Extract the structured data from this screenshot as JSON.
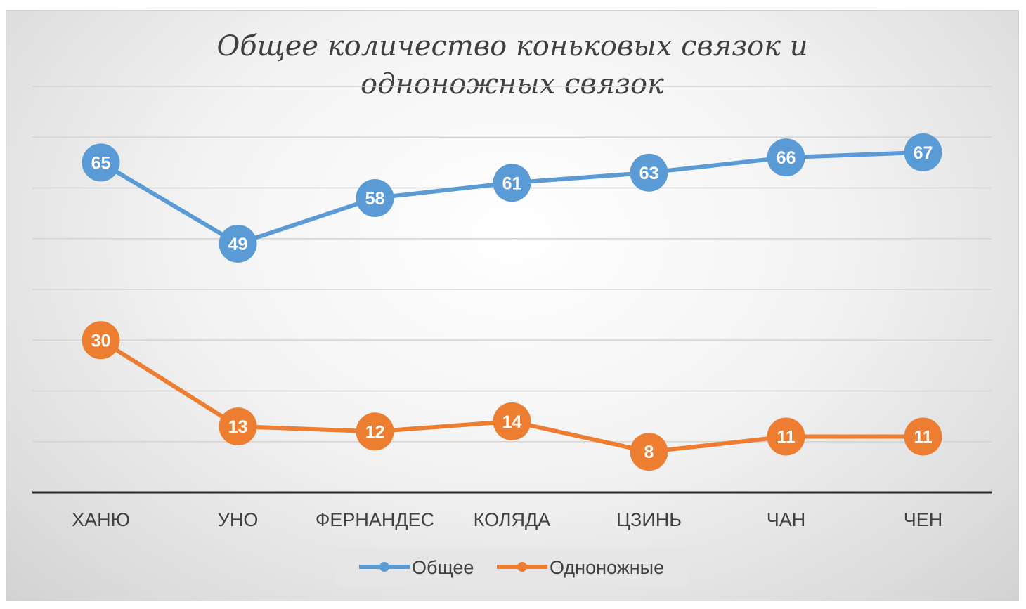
{
  "chart_data": {
    "type": "line",
    "title_lines": [
      "Общее количество коньковых связок и",
      "одноножных связок"
    ],
    "categories": [
      "ХАНЮ",
      "УНО",
      "ФЕРНАНДЕС",
      "КОЛЯДА",
      "ЦЗИНЬ",
      "ЧАН",
      "ЧЕН"
    ],
    "series": [
      {
        "name": "Общее",
        "color": "#5b9bd5",
        "values": [
          65,
          49,
          58,
          61,
          63,
          66,
          67
        ]
      },
      {
        "name": "Одноножные",
        "color": "#ed7d31",
        "values": [
          30,
          13,
          12,
          14,
          8,
          11,
          11
        ]
      }
    ],
    "ylim": [
      0,
      80
    ],
    "y_grid_step": 10,
    "grid": true,
    "y_tick_labels_shown": false,
    "data_labels": true,
    "legend_position": "bottom"
  }
}
